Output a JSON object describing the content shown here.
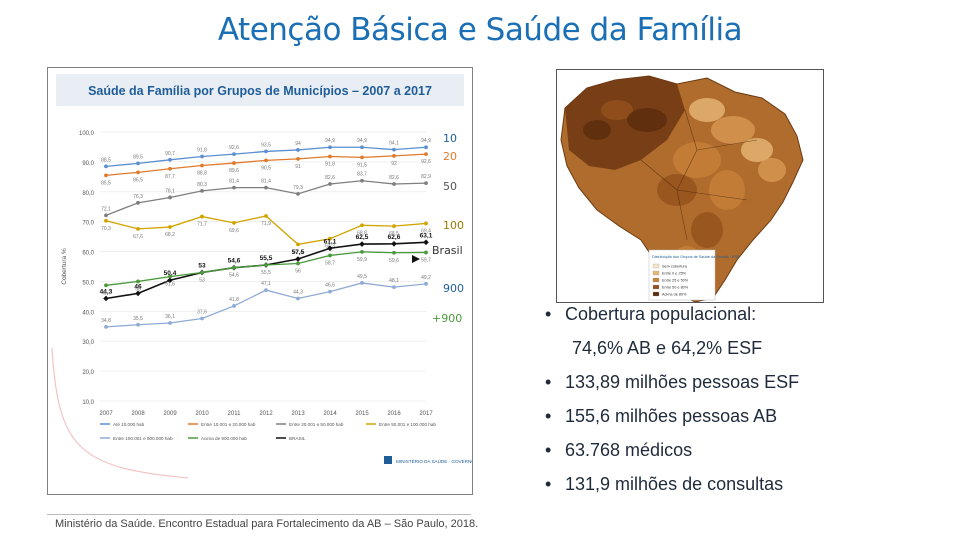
{
  "slide": {
    "title": "Atenção Básica e Saúde da Família",
    "footnote": "Ministério da Saúde. Encontro Estadual para Fortalecimento da AB – São Paulo, 2018."
  },
  "bullets": [
    {
      "text": "Cobertura populacional:",
      "dot": "•"
    },
    {
      "text": "74,6% AB e 64,2% ESF",
      "dot": ""
    },
    {
      "text": "133,89 milhões pessoas ESF",
      "dot": "•"
    },
    {
      "text": "155,6 milhões pessoas AB",
      "dot": "•"
    },
    {
      "text": "63.768 médicos",
      "dot": "•"
    },
    {
      "text": "131,9 milhões de consultas",
      "dot": "•"
    }
  ],
  "chart_data": {
    "type": "line",
    "title": "Saúde da Família por Grupos de Municípios – 2007 a 2017",
    "title_bg": "#1f5d99",
    "x": [
      "2007",
      "2008",
      "2009",
      "2010",
      "2011",
      "2012",
      "2013",
      "2014",
      "2015",
      "2016",
      "2017"
    ],
    "ylabel": "Cobertura %",
    "ylim": [
      0,
      100
    ],
    "yticks": [
      "100,0",
      "90,0",
      "80,0",
      "70,0",
      "60,0",
      "50,0",
      "40,0",
      "30,0",
      "20,0",
      "10,0"
    ],
    "series": [
      {
        "color": "#5b8fd1",
        "label": "10",
        "values": [
          88.5,
          89.5,
          90.7,
          91.8,
          92.6,
          93.5,
          94.0,
          94.9,
          94.9,
          94.1,
          94.9
        ]
      },
      {
        "color": "#e07a2c",
        "label": "20",
        "values": [
          85.5,
          86.5,
          87.7,
          88.8,
          89.6,
          90.5,
          91.0,
          91.8,
          91.5,
          92.0,
          92.6
        ]
      },
      {
        "color": "#7f7f7f",
        "label": "50",
        "values": [
          72.1,
          76.3,
          78.1,
          80.3,
          81.4,
          81.4,
          79.3,
          82.6,
          83.7,
          82.6,
          82.9
        ]
      },
      {
        "color": "#d2a400",
        "label": "100",
        "values": [
          70.3,
          67.6,
          68.2,
          71.7,
          69.6,
          71.9,
          62.4,
          64.3,
          68.8,
          68.5,
          69.4
        ]
      },
      {
        "color": "#111111",
        "label": "Brasil",
        "values": [
          44.3,
          46.0,
          50.4,
          53.0,
          54.6,
          55.5,
          57.5,
          61.1,
          62.5,
          62.6,
          63.1
        ]
      },
      {
        "color": "#4a9a3c",
        "label": "+900",
        "values": [
          48.7,
          50.0,
          51.6,
          53.0,
          54.6,
          55.5,
          56.0,
          58.7,
          59.9,
          59.6,
          59.7
        ]
      },
      {
        "color": "#8faad4",
        "label": "900",
        "values": [
          34.8,
          35.5,
          36.1,
          37.6,
          41.8,
          47.1,
          44.3,
          46.6,
          49.5,
          48.1,
          49.2
        ]
      }
    ],
    "right_labels": [
      {
        "text": "10",
        "color": "#1f5d99"
      },
      {
        "text": "20",
        "color": "#e07a2c"
      },
      {
        "text": "50",
        "color": "#555555"
      },
      {
        "text": "100",
        "color": "#9a7a00"
      },
      {
        "text": "Brasil",
        "color": "#333333"
      },
      {
        "text": "900",
        "color": "#1f5d99"
      },
      {
        "text": "+900",
        "color": "#4a9a3c"
      }
    ],
    "legend_placement": "bottom",
    "legend": [
      {
        "text": "Até 10.000 hab",
        "color": "#5b8fd1"
      },
      {
        "text": "Entre 10.001 e 20.000 hab",
        "color": "#e07a2c"
      },
      {
        "text": "Entre 20.001 e 50.000 hab",
        "color": "#7f7f7f"
      },
      {
        "text": "Entre 50.001 e 100.000 hab",
        "color": "#d2a400"
      },
      {
        "text": "Entre 100.001 e 900.000 hab",
        "color": "#8faad4"
      },
      {
        "text": "Acima de 900.000 hab",
        "color": "#4a9a3c"
      },
      {
        "text": "BRASIL",
        "color": "#111111"
      }
    ],
    "logo_text": "MINISTÉRIO DA SAÚDE · GOVERNO FEDERAL"
  },
  "map": {
    "legend_title": "Distribuição dos Grupos de Saúde da Família · ESF",
    "legend_items": [
      {
        "text": "Sem cobertura",
        "color": "#f4e7c8"
      },
      {
        "text": "Entre 0 e 25%",
        "color": "#e6b877"
      },
      {
        "text": "Entre 25 e 50%",
        "color": "#c7813a"
      },
      {
        "text": "Entre 50 e 80%",
        "color": "#94511d"
      },
      {
        "text": "Acima de 80%",
        "color": "#5a2c0b"
      }
    ]
  }
}
